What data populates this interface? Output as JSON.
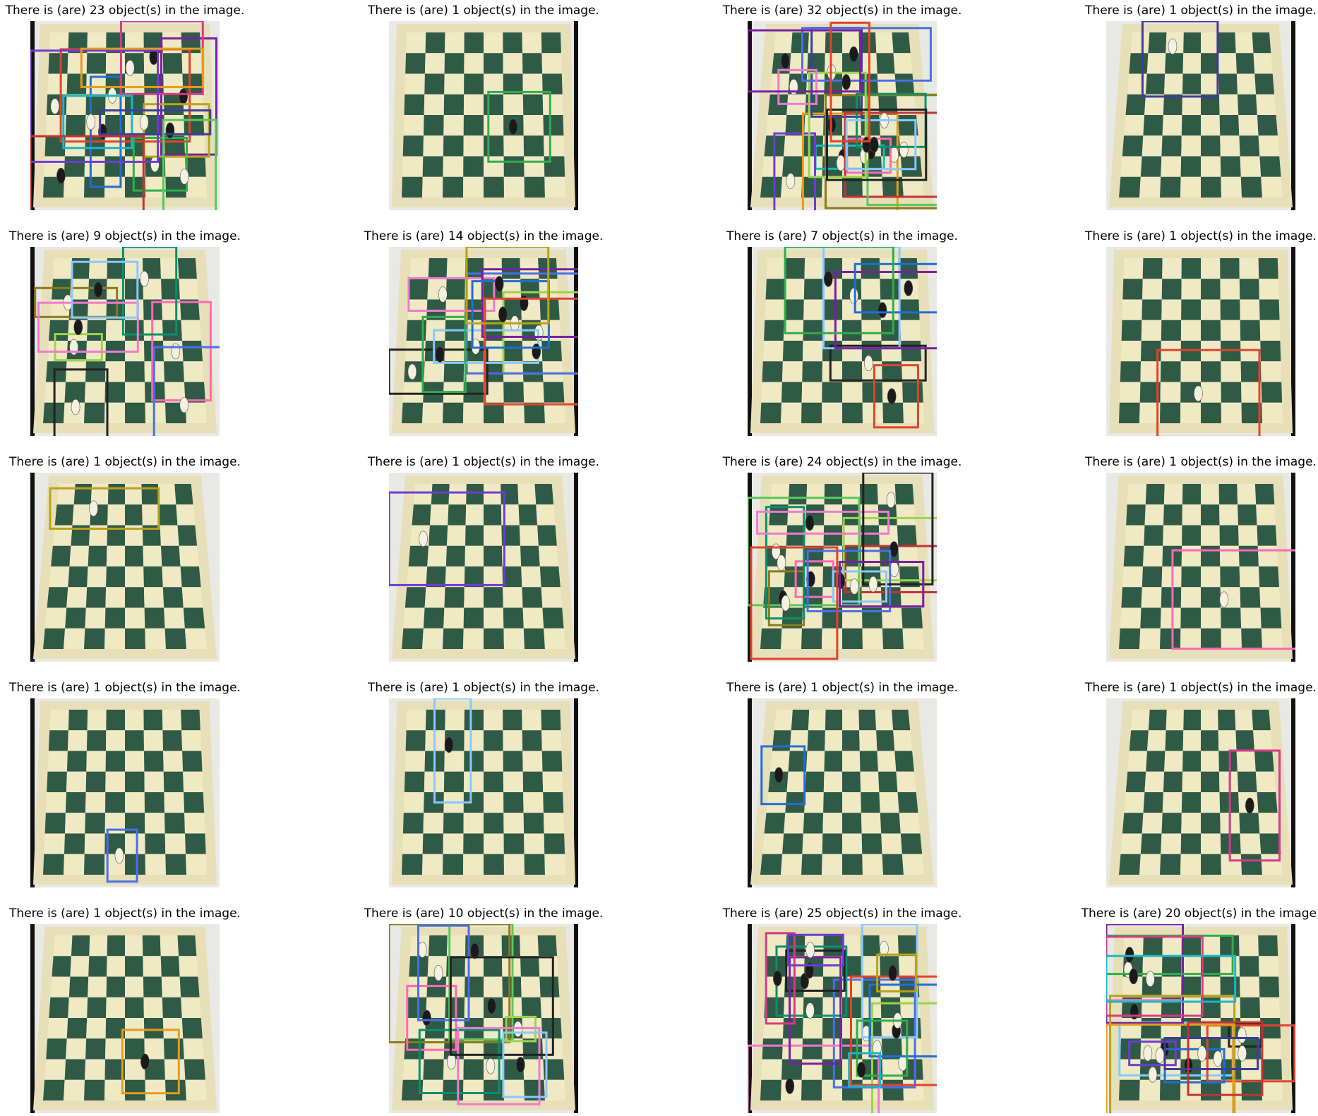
{
  "figure": {
    "panels": [
      {
        "title": "There is (are) 23 object(s) in the image."
      },
      {
        "title": "There is (are) 1 object(s) in the image."
      },
      {
        "title": "There is (are) 32 object(s) in the image."
      },
      {
        "title": "There is (are) 1 object(s) in the image."
      },
      {
        "title": "There is (are) 9 object(s) in the image."
      },
      {
        "title": "There is (are) 14 object(s) in the image."
      },
      {
        "title": "There is (are) 7 object(s) in the image."
      },
      {
        "title": "There is (are) 1 object(s) in the image."
      },
      {
        "title": "There is (are) 1 object(s) in the image."
      },
      {
        "title": "There is (are) 1 object(s) in the image."
      },
      {
        "title": "There is (are) 24 object(s) in the image."
      },
      {
        "title": "There is (are) 1 object(s) in the image."
      },
      {
        "title": "There is (are) 1 object(s) in the image."
      },
      {
        "title": "There is (are) 1 object(s) in the image."
      },
      {
        "title": "There is (are) 1 object(s) in the image."
      },
      {
        "title": "There is (are) 1 object(s) in the image."
      },
      {
        "title": "There is (are) 1 object(s) in the image."
      },
      {
        "title": "There is (are) 10 object(s) in the image."
      },
      {
        "title": "There is (are) 25 object(s) in the image."
      },
      {
        "title": "There is (are) 20 object(s) in the image."
      }
    ],
    "colors": {
      "board_light": "#efe9c4",
      "board_dark": "#2f5a46",
      "background": "#e8e8e4"
    }
  }
}
